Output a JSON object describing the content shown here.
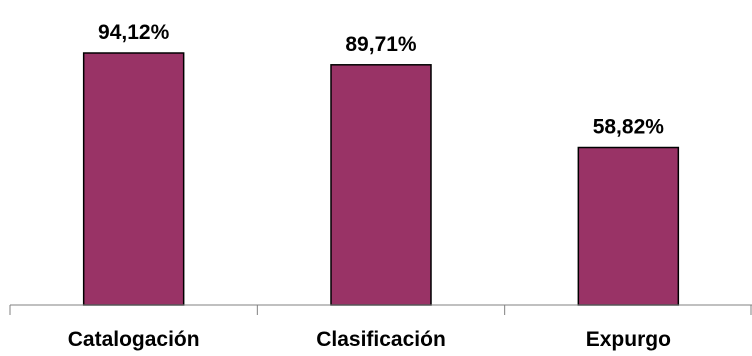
{
  "chart_data": {
    "type": "bar",
    "categories": [
      "Catalogación",
      "Clasificación",
      "Expurgo"
    ],
    "values": [
      94.12,
      89.71,
      58.82
    ],
    "data_labels": [
      "94,12%",
      "89,71%",
      "58,82%"
    ],
    "ylim": [
      0,
      100
    ],
    "grid": false,
    "legend": "none",
    "bar_color": "#993366",
    "axis_color": "#808080"
  }
}
